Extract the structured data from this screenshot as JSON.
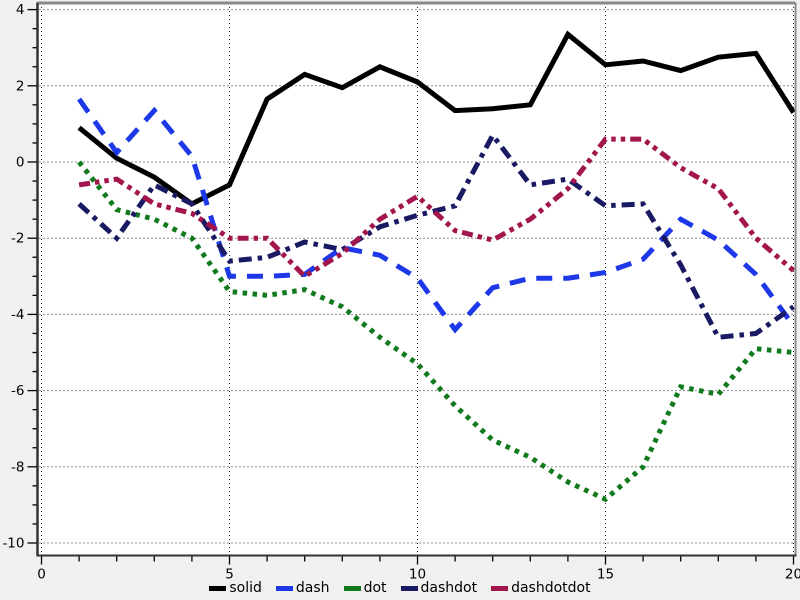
{
  "chart_data": {
    "type": "line",
    "title": "",
    "xlabel": "",
    "ylabel": "",
    "xlim": [
      0,
      20
    ],
    "ylim": [
      -10,
      4
    ],
    "grid": true,
    "legend_position": "bottom-center",
    "x_major_ticks": [
      0,
      5,
      10,
      15,
      20
    ],
    "x_tick_labels": [
      "0",
      "5",
      "10",
      "15",
      "20"
    ],
    "x_minor_step": 1,
    "y_major_ticks": [
      4,
      2,
      0,
      -2,
      -4,
      -6,
      -8,
      -10
    ],
    "y_tick_labels": [
      "4",
      "2",
      "0",
      "-2",
      "-4",
      "-6",
      "-8",
      "-10"
    ],
    "y_minor_step": 0.5,
    "x": [
      1,
      2,
      3,
      4,
      5,
      6,
      7,
      8,
      9,
      10,
      11,
      12,
      13,
      14,
      15,
      16,
      17,
      18,
      19,
      20
    ],
    "series": [
      {
        "name": "solid",
        "dash_style": "solid",
        "color": "#000000",
        "values": [
          0.9,
          0.1,
          -0.4,
          -1.1,
          -0.6,
          1.65,
          2.3,
          1.95,
          2.5,
          2.1,
          1.35,
          1.4,
          1.5,
          3.35,
          2.55,
          2.65,
          2.4,
          2.75,
          2.85,
          1.3
        ]
      },
      {
        "name": "dash",
        "dash_style": "dash",
        "color": "#1c38e8",
        "values": [
          1.65,
          0.25,
          1.35,
          0.15,
          -3.0,
          -3.0,
          -2.95,
          -2.25,
          -2.45,
          -3.05,
          -4.4,
          -3.3,
          -3.05,
          -3.05,
          -2.9,
          -2.55,
          -1.5,
          -2.05,
          -2.95,
          -4.3
        ]
      },
      {
        "name": "dot",
        "dash_style": "dot",
        "color": "#107a1c",
        "values": [
          0.0,
          -1.25,
          -1.5,
          -2.0,
          -3.4,
          -3.5,
          -3.35,
          -3.8,
          -4.6,
          -5.3,
          -6.4,
          -7.3,
          -7.75,
          -8.4,
          -8.85,
          -8.0,
          -5.9,
          -6.1,
          -4.9,
          -5.0
        ]
      },
      {
        "name": "dashdot",
        "dash_style": "dashdot",
        "color": "#1a1a64",
        "values": [
          -1.1,
          -2.0,
          -0.6,
          -1.1,
          -2.6,
          -2.5,
          -2.1,
          -2.3,
          -1.7,
          -1.4,
          -1.15,
          0.7,
          -0.6,
          -0.45,
          -1.15,
          -1.1,
          -2.7,
          -4.6,
          -4.5,
          -3.8
        ]
      },
      {
        "name": "dashdotdot",
        "dash_style": "dashdotdot",
        "color": "#a3154d",
        "values": [
          -0.6,
          -0.45,
          -1.1,
          -1.35,
          -2.0,
          -2.0,
          -3.0,
          -2.4,
          -1.5,
          -0.9,
          -1.8,
          -2.05,
          -1.5,
          -0.7,
          0.6,
          0.6,
          -0.15,
          -0.7,
          -2.0,
          -2.85
        ]
      }
    ],
    "plot_bg": "#ffffff",
    "outer_bg": "#f0f0ee",
    "grid_color": "#222222",
    "spine_dark": "#333333",
    "spine_gray": "#8a8a8a"
  },
  "legend": {
    "items": [
      "solid",
      "dash",
      "dot",
      "dashdot",
      "dashdotdot"
    ]
  }
}
